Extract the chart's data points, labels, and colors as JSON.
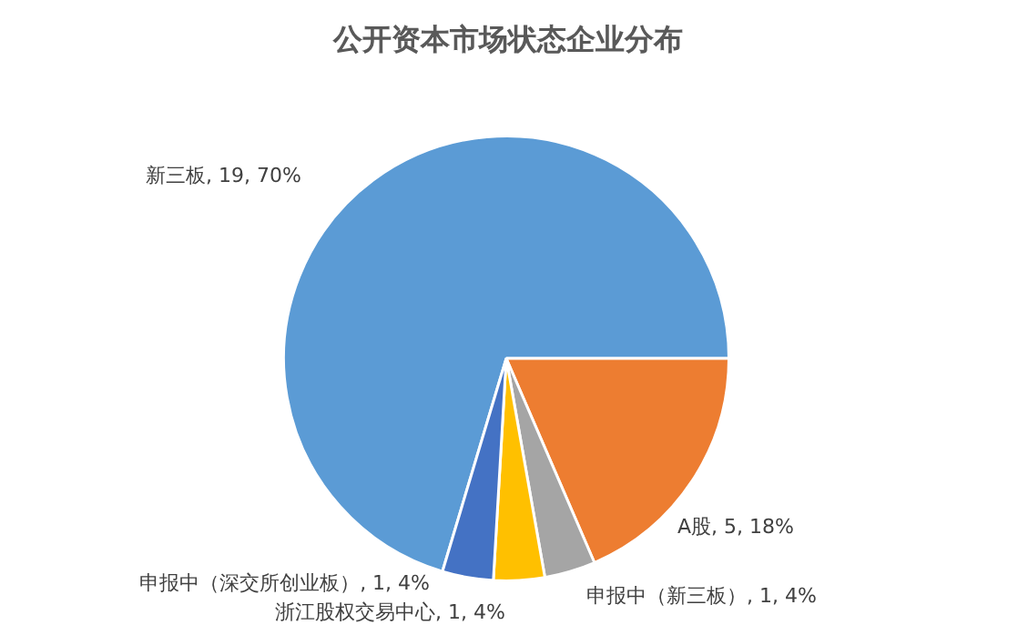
{
  "chart_data": {
    "type": "pie",
    "title": "公开资本市场状态企业分布",
    "categories": [
      "新三板",
      "A股",
      "申报中（新三板）",
      "浙江股权交易中心",
      "申报中（深交所创业板）"
    ],
    "values": [
      19,
      5,
      1,
      1,
      1
    ],
    "colors": [
      "#5b9bd5",
      "#ed7d31",
      "#a5a5a5",
      "#ffc000",
      "#4472c4"
    ],
    "value_labels": [
      "19, 70%",
      "5, 18%",
      "1, 4%",
      "1, 4%",
      "1, 4%"
    ],
    "legend": false
  }
}
